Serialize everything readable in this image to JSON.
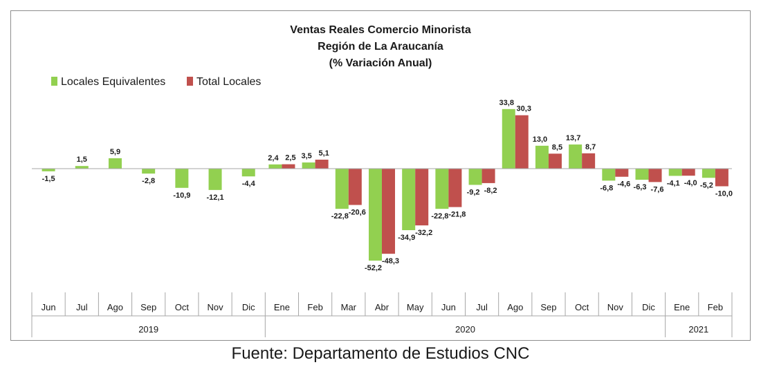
{
  "chart_data": {
    "type": "bar",
    "title": [
      "Ventas Reales Comercio Minorista",
      "Región de La Araucanía",
      "(% Variación Anual)"
    ],
    "categories": [
      "Jun",
      "Jul",
      "Ago",
      "Sep",
      "Oct",
      "Nov",
      "Dic",
      "Ene",
      "Feb",
      "Mar",
      "Abr",
      "May",
      "Jun",
      "Jul",
      "Ago",
      "Sep",
      "Oct",
      "Nov",
      "Dic",
      "Ene",
      "Feb"
    ],
    "years": [
      {
        "label": "2019",
        "start": 0,
        "end": 6
      },
      {
        "label": "2020",
        "start": 7,
        "end": 18
      },
      {
        "label": "2021",
        "start": 19,
        "end": 20
      }
    ],
    "series": [
      {
        "name": "Locales Equivalentes",
        "color": "#92d050",
        "values": [
          -1.5,
          1.5,
          5.9,
          -2.8,
          -10.9,
          -12.1,
          -4.4,
          2.4,
          3.5,
          -22.8,
          -52.2,
          -34.9,
          -22.8,
          -9.2,
          33.8,
          13.0,
          13.7,
          -6.8,
          -6.3,
          -4.1,
          -5.2
        ],
        "labels": [
          "-1,5",
          "1,5",
          "5,9",
          "-2,8",
          "-10,9",
          "-12,1",
          "-4,4",
          "2,4",
          "3,5",
          "-22,8",
          "-52,2",
          "-34,9",
          "-22,8",
          "-9,2",
          "33,8",
          "13,0",
          "13,7",
          "-6,8",
          "-6,3",
          "-4,1",
          "-5,2"
        ]
      },
      {
        "name": "Total Locales",
        "color": "#c0504d",
        "values": [
          null,
          null,
          null,
          null,
          null,
          null,
          null,
          2.5,
          5.1,
          -20.6,
          -48.3,
          -32.2,
          -21.8,
          -8.2,
          30.3,
          8.5,
          8.7,
          -4.6,
          -7.6,
          -4.0,
          -10.0
        ],
        "labels": [
          null,
          null,
          null,
          null,
          null,
          null,
          null,
          "2,5",
          "5,1",
          "-20,6",
          "-48,3",
          "-32,2",
          "-21,8",
          "-8,2",
          "30,3",
          "8,5",
          "8,7",
          "-4,6",
          "-7,6",
          "-4,0",
          "-10,0"
        ]
      }
    ],
    "ylim": [
      -55,
      36
    ],
    "legend_position": "top-left",
    "grid": false
  },
  "source_note": "Fuente: Departamento de Estudios CNC"
}
